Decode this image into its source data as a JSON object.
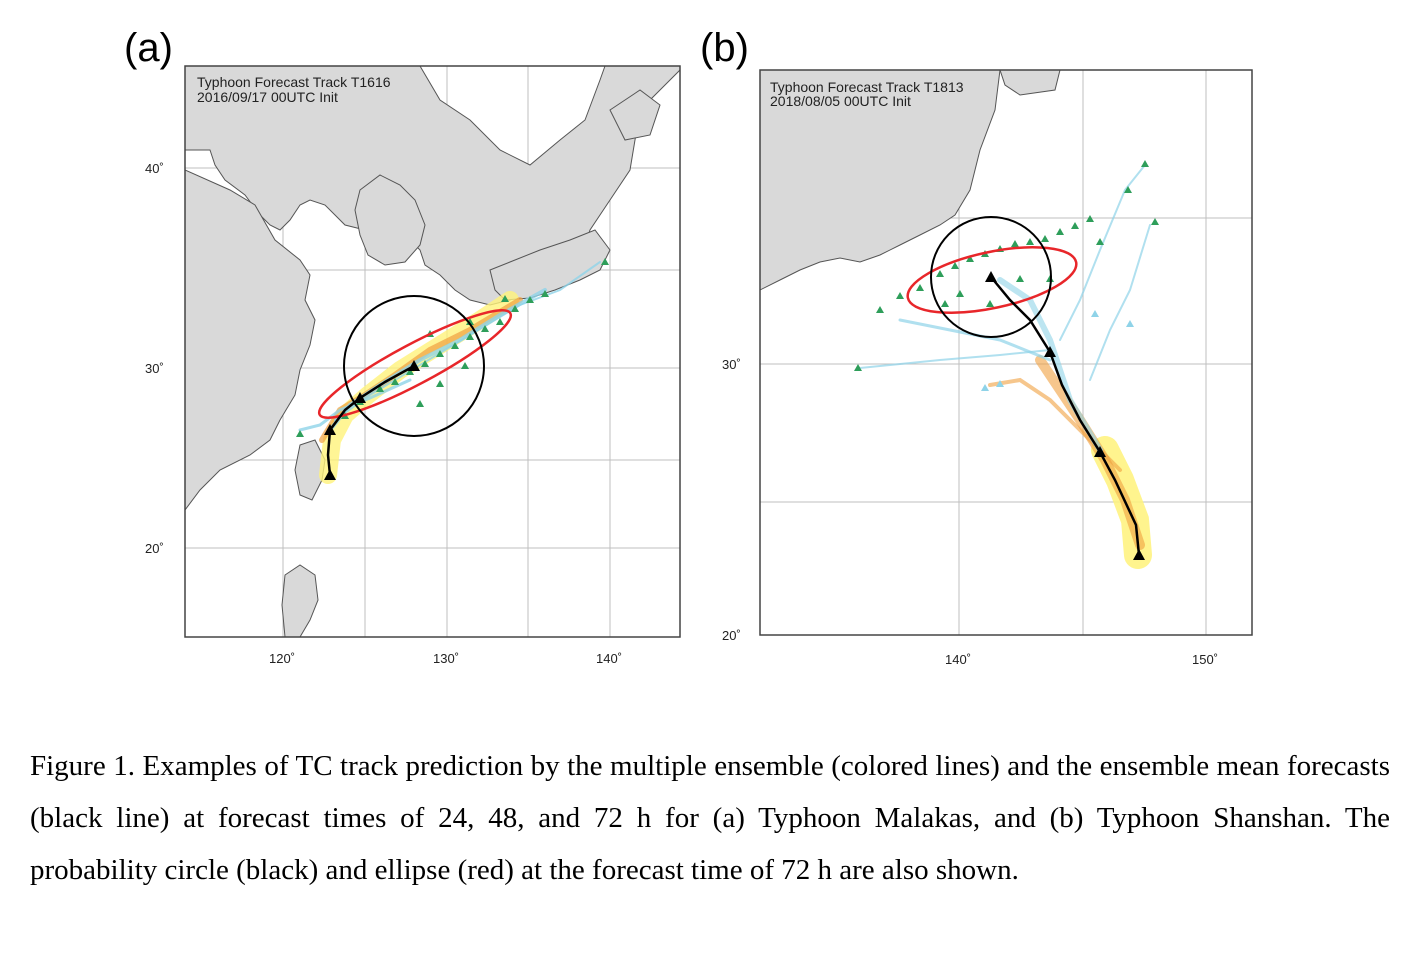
{
  "figure": {
    "panel_a": {
      "letter": "(a)",
      "title_line1": "Typhoon Forecast Track T1616",
      "title_line2": "2016/09/17 00UTC Init",
      "y_ticks": [
        "40˚",
        "30˚",
        "20˚"
      ],
      "x_ticks": [
        "120˚",
        "130˚",
        "140˚"
      ]
    },
    "panel_b": {
      "letter": "(b)",
      "title_line1": "Typhoon Forecast Track T1813",
      "title_line2": "2018/08/05 00UTC Init",
      "y_ticks": [
        "30˚",
        "20˚"
      ],
      "x_ticks": [
        "140˚",
        "150˚"
      ]
    },
    "colors": {
      "land": "#d9d9d9",
      "coast": "#555555",
      "mean_track": "#000000",
      "circle": "#000000",
      "ellipse": "#e8262a",
      "hour24": "#fff27a",
      "hour48": "#f0a040",
      "hour72": "#8fd3e8",
      "markers": "#2e9e5a"
    },
    "caption": "Figure 1. Examples of TC track prediction by the multiple ensemble (colored lines) and the ensemble mean forecasts (black line) at forecast times of 24, 48, and 72 h for (a) Typhoon Malakas, and (b) Typhoon Shanshan. The probability circle (black) and ellipse (red) at the forecast time of 72 h are also shown."
  }
}
